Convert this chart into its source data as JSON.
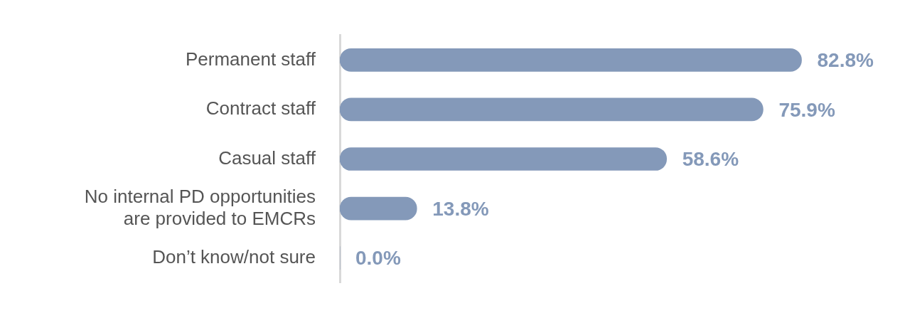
{
  "chart_data": {
    "type": "bar",
    "orientation": "horizontal",
    "categories": [
      "Permanent staff",
      "Contract staff",
      "Casual staff",
      "No internal PD opportunities are provided to EMCRs",
      "Don’t know/not sure"
    ],
    "values": [
      82.8,
      75.9,
      58.6,
      13.8,
      0.0
    ],
    "value_labels": [
      "82.8%",
      "75.9%",
      "58.6%",
      "13.8%",
      "0.0%"
    ],
    "color": "#8499b9",
    "tick_labels": "y",
    "legend": false
  }
}
